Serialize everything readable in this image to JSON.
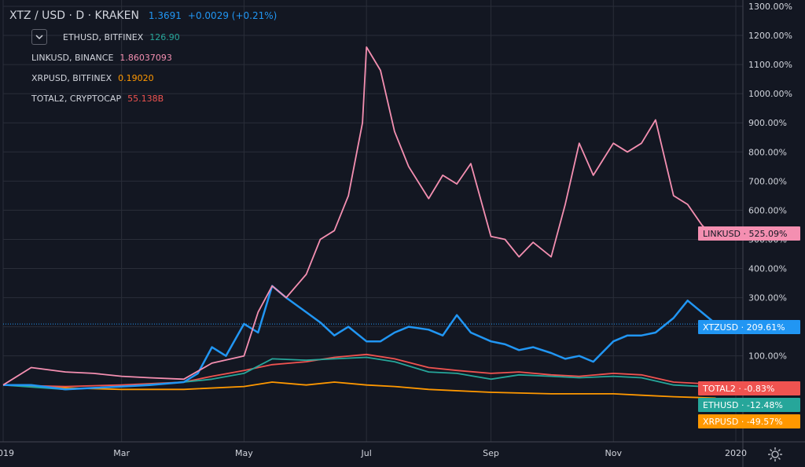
{
  "legend": {
    "title": "XTZ / USD · D · KRAKEN",
    "title_value": "1.3691",
    "title_change": "+0.0029 (+0.21%)",
    "title_color": "#2196f3",
    "items": [
      {
        "label": "ETHUSD, BITFINEX",
        "value": "126.90",
        "color": "#26a69a"
      },
      {
        "label": "LINKUSD, BINANCE",
        "value": "1.86037093",
        "color": "#f48fb1"
      },
      {
        "label": "XRPUSD, BITFINEX",
        "value": "0.19020",
        "color": "#ff9800"
      },
      {
        "label": "TOTAL2, CRYPTOCAP",
        "value": "55.138B",
        "color": "#ef5350"
      }
    ]
  },
  "chart_data": {
    "type": "line",
    "title": "XTZ / USD · D · KRAKEN",
    "y_unit": "%",
    "y_scale": "percent change",
    "ylim": [
      -195,
      1300
    ],
    "y_ticks": [
      "1300.00%",
      "1200.00%",
      "1100.00%",
      "1000.00%",
      "900.00%",
      "800.00%",
      "700.00%",
      "600.00%",
      "500.00%",
      "400.00%",
      "300.00%",
      "200.00%",
      "100.00%"
    ],
    "y_tick_values": [
      1300,
      1200,
      1100,
      1000,
      900,
      800,
      700,
      600,
      500,
      400,
      300,
      200,
      100
    ],
    "x_ticks": [
      "2019",
      "Mar",
      "May",
      "Jul",
      "Sep",
      "Nov",
      "2020"
    ],
    "x_tick_values": [
      "2019-01-01",
      "2019-03-01",
      "2019-05-01",
      "2019-07-01",
      "2019-09-01",
      "2019-11-01",
      "2020-01-01"
    ],
    "grid": true,
    "series": [
      {
        "name": "LINKUSD",
        "color": "#f48fb1",
        "end_label": "LINKUSD",
        "end_value": "525.09%",
        "x": [
          "2019-01-01",
          "2019-01-15",
          "2019-02-01",
          "2019-02-15",
          "2019-03-01",
          "2019-03-15",
          "2019-04-01",
          "2019-04-15",
          "2019-05-01",
          "2019-05-08",
          "2019-05-15",
          "2019-05-22",
          "2019-06-01",
          "2019-06-08",
          "2019-06-15",
          "2019-06-22",
          "2019-06-29",
          "2019-07-01",
          "2019-07-08",
          "2019-07-15",
          "2019-07-22",
          "2019-08-01",
          "2019-08-08",
          "2019-08-15",
          "2019-08-22",
          "2019-09-01",
          "2019-09-08",
          "2019-09-15",
          "2019-09-22",
          "2019-10-01",
          "2019-10-08",
          "2019-10-15",
          "2019-10-22",
          "2019-11-01",
          "2019-11-08",
          "2019-11-15",
          "2019-11-22",
          "2019-12-01",
          "2019-12-08",
          "2019-12-15",
          "2019-12-22"
        ],
        "y": [
          0,
          60,
          45,
          40,
          30,
          25,
          20,
          75,
          100,
          250,
          340,
          300,
          380,
          500,
          530,
          650,
          900,
          1160,
          1080,
          870,
          750,
          640,
          720,
          690,
          760,
          510,
          500,
          440,
          490,
          440,
          620,
          830,
          720,
          830,
          800,
          830,
          910,
          650,
          620,
          550,
          500
        ]
      },
      {
        "name": "XTZUSD",
        "color": "#2196f3",
        "end_label": "XTZUSD",
        "end_value": "209.61%",
        "x": [
          "2019-01-01",
          "2019-01-15",
          "2019-02-01",
          "2019-02-15",
          "2019-03-01",
          "2019-03-15",
          "2019-04-01",
          "2019-04-08",
          "2019-04-15",
          "2019-04-22",
          "2019-05-01",
          "2019-05-08",
          "2019-05-15",
          "2019-05-22",
          "2019-06-01",
          "2019-06-08",
          "2019-06-15",
          "2019-06-22",
          "2019-07-01",
          "2019-07-08",
          "2019-07-15",
          "2019-07-22",
          "2019-08-01",
          "2019-08-08",
          "2019-08-15",
          "2019-08-22",
          "2019-09-01",
          "2019-09-08",
          "2019-09-15",
          "2019-09-22",
          "2019-10-01",
          "2019-10-08",
          "2019-10-15",
          "2019-10-22",
          "2019-11-01",
          "2019-11-08",
          "2019-11-15",
          "2019-11-22",
          "2019-12-01",
          "2019-12-08",
          "2019-12-15",
          "2019-12-22"
        ],
        "y": [
          0,
          0,
          -15,
          -10,
          -5,
          0,
          10,
          40,
          130,
          100,
          210,
          180,
          340,
          300,
          250,
          215,
          170,
          200,
          150,
          150,
          180,
          200,
          190,
          170,
          240,
          180,
          150,
          140,
          120,
          130,
          110,
          90,
          100,
          80,
          150,
          170,
          170,
          180,
          230,
          290,
          250,
          210
        ]
      },
      {
        "name": "TOTAL2",
        "color": "#ef5350",
        "end_label": "TOTAL2",
        "end_value": "-0.83%",
        "x": [
          "2019-01-01",
          "2019-02-01",
          "2019-03-01",
          "2019-04-01",
          "2019-04-15",
          "2019-05-01",
          "2019-05-15",
          "2019-06-01",
          "2019-06-15",
          "2019-07-01",
          "2019-07-15",
          "2019-08-01",
          "2019-08-15",
          "2019-09-01",
          "2019-09-15",
          "2019-10-01",
          "2019-10-15",
          "2019-11-01",
          "2019-11-15",
          "2019-12-01",
          "2019-12-15",
          "2019-12-22"
        ],
        "y": [
          0,
          -5,
          0,
          10,
          30,
          50,
          70,
          80,
          95,
          105,
          90,
          60,
          50,
          40,
          45,
          35,
          30,
          40,
          35,
          10,
          5,
          0
        ]
      },
      {
        "name": "ETHUSD",
        "color": "#26a69a",
        "end_label": "ETHUSD",
        "end_value": "-12.48%",
        "x": [
          "2019-01-01",
          "2019-02-01",
          "2019-03-01",
          "2019-04-01",
          "2019-04-15",
          "2019-05-01",
          "2019-05-15",
          "2019-06-01",
          "2019-06-15",
          "2019-07-01",
          "2019-07-15",
          "2019-08-01",
          "2019-08-15",
          "2019-09-01",
          "2019-09-15",
          "2019-10-01",
          "2019-10-15",
          "2019-11-01",
          "2019-11-15",
          "2019-12-01",
          "2019-12-15",
          "2019-12-22"
        ],
        "y": [
          0,
          -15,
          -5,
          10,
          20,
          40,
          90,
          85,
          90,
          95,
          80,
          45,
          40,
          20,
          35,
          30,
          25,
          30,
          25,
          0,
          -5,
          -12
        ]
      },
      {
        "name": "XRPUSD",
        "color": "#ff9800",
        "end_label": "XRPUSD",
        "end_value": "-49.57%",
        "x": [
          "2019-01-01",
          "2019-02-01",
          "2019-03-01",
          "2019-04-01",
          "2019-05-01",
          "2019-05-15",
          "2019-06-01",
          "2019-06-15",
          "2019-07-01",
          "2019-07-15",
          "2019-08-01",
          "2019-09-01",
          "2019-10-01",
          "2019-11-01",
          "2019-11-15",
          "2019-12-01",
          "2019-12-22"
        ],
        "y": [
          0,
          -10,
          -15,
          -15,
          -5,
          10,
          0,
          10,
          0,
          -5,
          -15,
          -25,
          -30,
          -30,
          -35,
          -40,
          -45
        ]
      }
    ],
    "crosshair_value": 209.61
  }
}
